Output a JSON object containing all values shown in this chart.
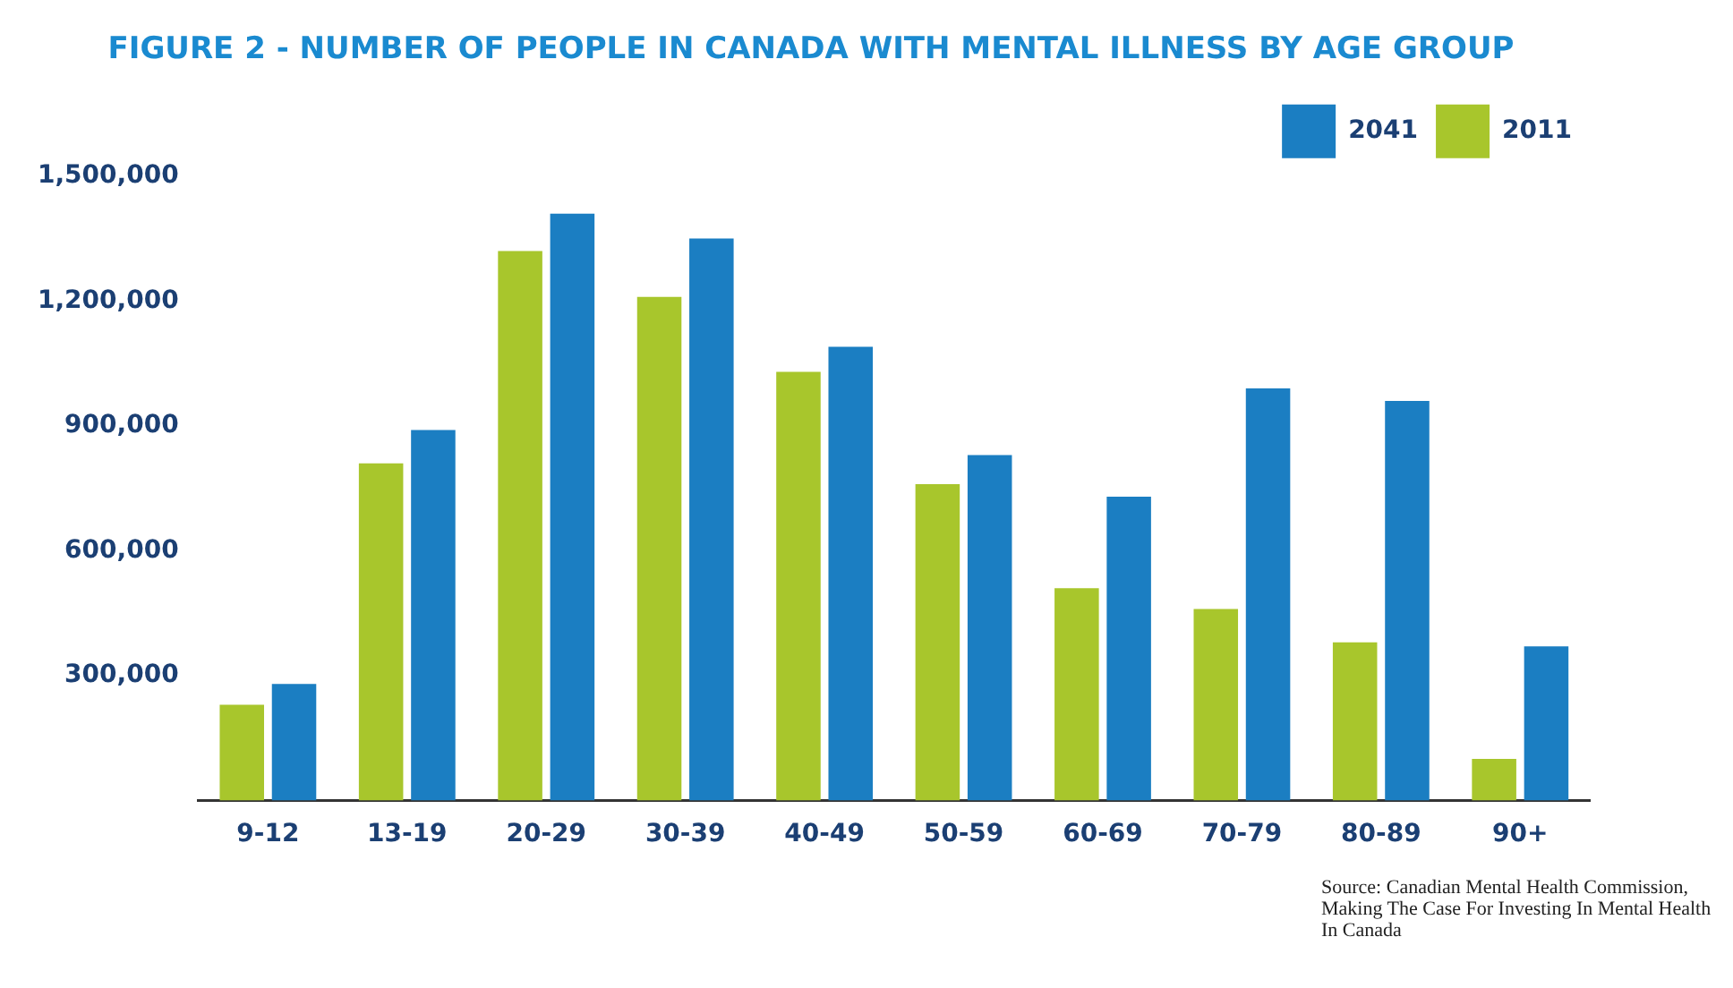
{
  "chart_data": {
    "type": "bar",
    "title": "FIGURE 2 - NUMBER OF PEOPLE IN CANADA WITH MENTAL ILLNESS BY AGE GROUP",
    "categories": [
      "9-12",
      "13-19",
      "20-29",
      "30-39",
      "40-49",
      "50-59",
      "60-69",
      "70-79",
      "80-89",
      "90+"
    ],
    "series": [
      {
        "name": "2011",
        "color": "#a8c62c",
        "values": [
          230000,
          810000,
          1320000,
          1210000,
          1030000,
          760000,
          510000,
          460000,
          380000,
          100000
        ]
      },
      {
        "name": "2041",
        "color": "#1b7ec2",
        "values": [
          280000,
          890000,
          1410000,
          1350000,
          1090000,
          830000,
          730000,
          990000,
          960000,
          370000
        ]
      }
    ],
    "ylim": [
      0,
      1500000
    ],
    "yticks": [
      {
        "value": 300000,
        "label": "300,000"
      },
      {
        "value": 600000,
        "label": "600,000"
      },
      {
        "value": 900000,
        "label": "900,000"
      },
      {
        "value": 1200000,
        "label": "1,200,000"
      },
      {
        "value": 1500000,
        "label": "1,500,000"
      }
    ],
    "grid": false,
    "legend": "top right",
    "annotations": [
      "Source: Canadian Mental Health Commission,  Making The Case For Investing In Mental Health In Canada"
    ]
  }
}
